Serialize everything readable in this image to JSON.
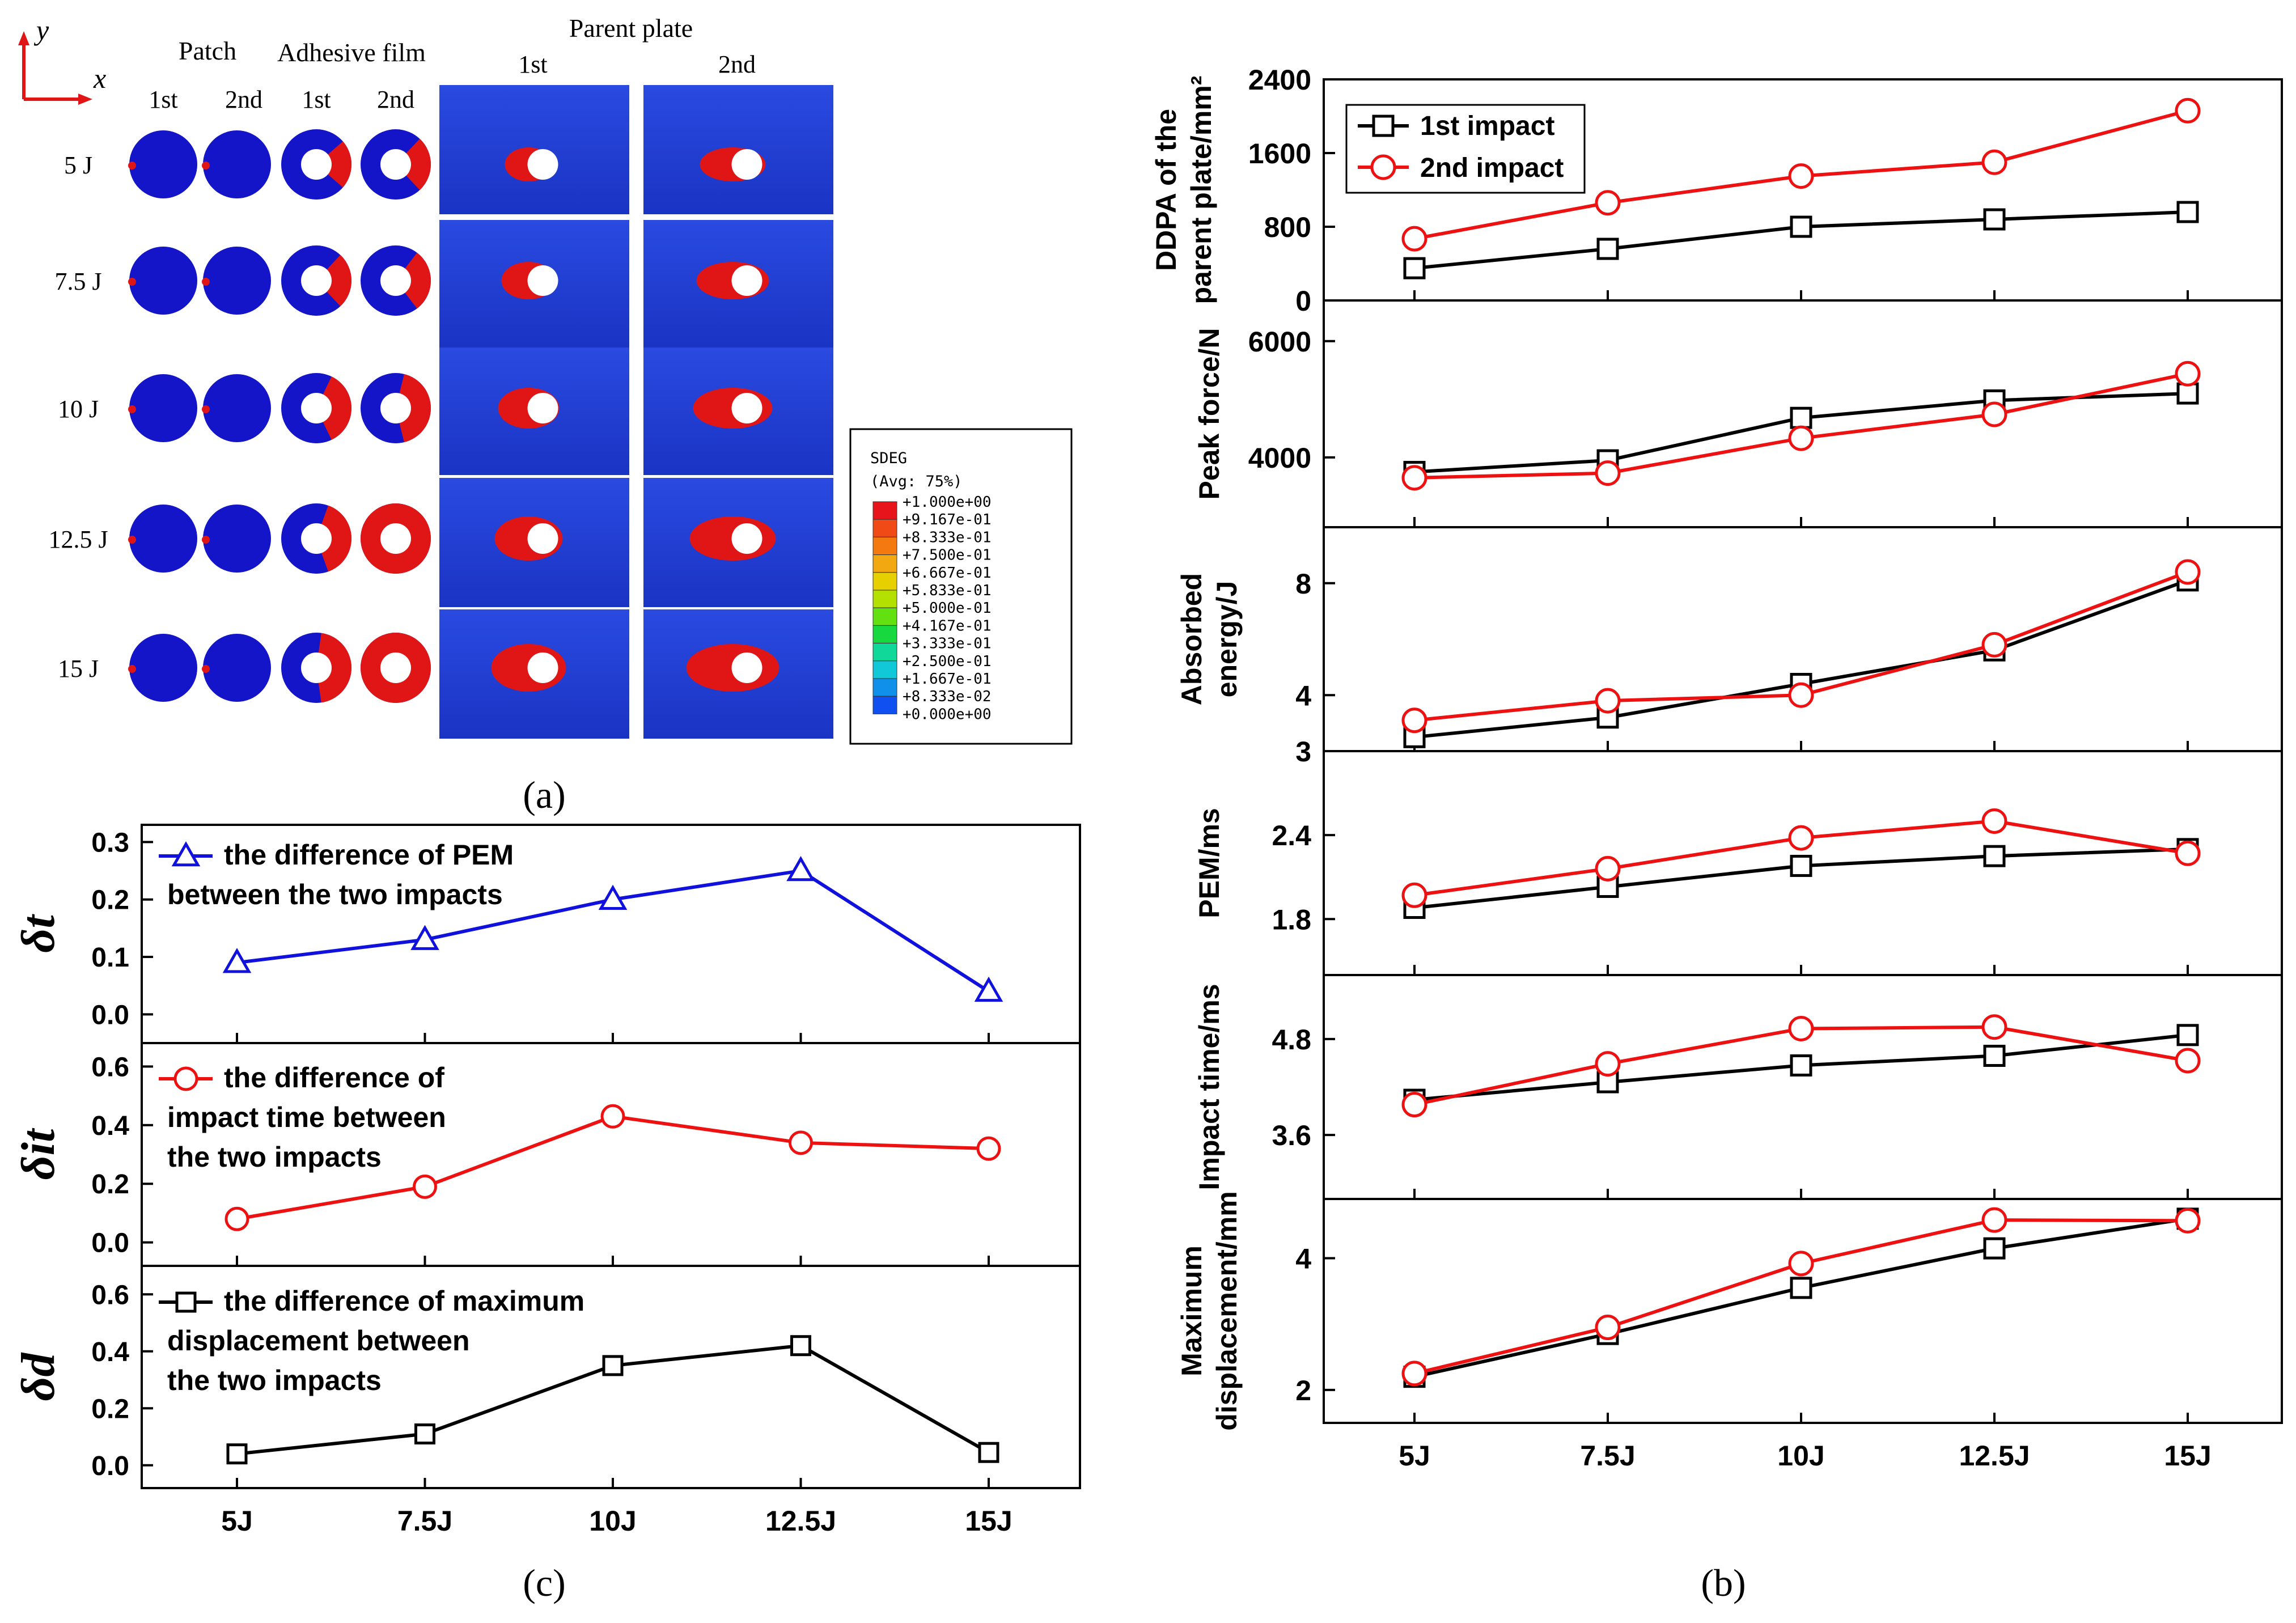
{
  "panel_a": {
    "caption": "(a)",
    "axis_labels": {
      "y": "y",
      "x": "x"
    },
    "headers": {
      "patch": "Patch",
      "adhesive": "Adhesive film",
      "parent": "Parent plate",
      "sub_1st": "1st",
      "sub_2nd": "2nd"
    },
    "energies": [
      "5 J",
      "7.5 J",
      "10 J",
      "12.5 J",
      "15 J"
    ],
    "damage_red_fraction_adhesive_1st": [
      0.35,
      0.4,
      0.55,
      0.6,
      0.7
    ],
    "damage_red_fraction_adhesive_2nd": [
      0.4,
      0.45,
      0.65,
      1.0,
      1.0
    ],
    "legend": {
      "title": "SDEG",
      "subtitle": "(Avg: 75%)",
      "levels": [
        "+1.000e+00",
        "+9.167e-01",
        "+8.333e-01",
        "+7.500e-01",
        "+6.667e-01",
        "+5.833e-01",
        "+5.000e-01",
        "+4.167e-01",
        "+3.333e-01",
        "+2.500e-01",
        "+1.667e-01",
        "+8.333e-02",
        "+0.000e+00"
      ],
      "colors": [
        "#e8141c",
        "#f04a16",
        "#f47a10",
        "#f2a810",
        "#e6d000",
        "#b4e000",
        "#62e010",
        "#18d840",
        "#10d898",
        "#10c8d8",
        "#1090e8",
        "#1050f0",
        "#1018e0"
      ]
    },
    "colors": {
      "blue": "#1414c8",
      "red": "#e01616",
      "plate_blue": "#1e3ad2"
    }
  },
  "panel_b": {
    "caption": "(b)",
    "categories": [
      "5J",
      "7.5J",
      "10J",
      "12.5J",
      "15J"
    ],
    "legend": [
      "1st impact",
      "2nd impact"
    ],
    "colors": {
      "first": "#000000",
      "second": "#ee1111"
    }
  },
  "panel_c": {
    "caption": "(c)",
    "categories": [
      "5J",
      "7.5J",
      "10J",
      "12.5J",
      "15J"
    ],
    "colors": {
      "t": "#1111dd",
      "it": "#ee1111",
      "d": "#000000"
    }
  },
  "chart_data": [
    {
      "panel": "b",
      "type": "line",
      "title": "",
      "categories": [
        "5J",
        "7.5J",
        "10J",
        "12.5J",
        "15J"
      ],
      "subplots": [
        {
          "ylabel": [
            "DDPA of the",
            "parent plate/mm²"
          ],
          "ylim": [
            0,
            2400
          ],
          "yticks": [
            0,
            800,
            1600,
            2400
          ],
          "series": [
            {
              "name": "1st impact",
              "marker": "square",
              "values": [
                350,
                560,
                800,
                880,
                960
              ]
            },
            {
              "name": "2nd impact",
              "marker": "circle",
              "values": [
                670,
                1060,
                1350,
                1500,
                2060
              ]
            }
          ]
        },
        {
          "ylabel": [
            "Peak force/N"
          ],
          "ylim": [
            2800,
            6700
          ],
          "yticks": [
            4000,
            6000
          ],
          "series": [
            {
              "name": "1st impact",
              "marker": "square",
              "values": [
                3750,
                3950,
                4680,
                4980,
                5100
              ]
            },
            {
              "name": "2nd impact",
              "marker": "circle",
              "values": [
                3650,
                3730,
                4330,
                4740,
                5440
              ]
            }
          ]
        },
        {
          "ylabel": [
            "Absorbed",
            "energy/J"
          ],
          "ylim": [
            2,
            10
          ],
          "yticks": [
            4,
            8
          ],
          "series": [
            {
              "name": "1st impact",
              "marker": "square",
              "values": [
                2.5,
                3.2,
                4.4,
                5.6,
                8.1
              ]
            },
            {
              "name": "2nd impact",
              "marker": "circle",
              "values": [
                3.1,
                3.8,
                4.0,
                5.8,
                8.4
              ]
            }
          ]
        },
        {
          "ylabel": [
            "PEM/ms"
          ],
          "ylim": [
            1.4,
            3.0
          ],
          "yticks": [
            1.8,
            2.4,
            3.0
          ],
          "series": [
            {
              "name": "1st impact",
              "marker": "square",
              "values": [
                1.88,
                2.03,
                2.18,
                2.25,
                2.3
              ]
            },
            {
              "name": "2nd impact",
              "marker": "circle",
              "values": [
                1.97,
                2.16,
                2.38,
                2.5,
                2.27
              ]
            }
          ]
        },
        {
          "ylabel": [
            "Impact time/ms"
          ],
          "ylim": [
            2.8,
            5.6
          ],
          "yticks": [
            3.6,
            4.8
          ],
          "series": [
            {
              "name": "1st impact",
              "marker": "square",
              "values": [
                4.04,
                4.26,
                4.47,
                4.59,
                4.85
              ]
            },
            {
              "name": "2nd impact",
              "marker": "circle",
              "values": [
                3.98,
                4.49,
                4.93,
                4.95,
                4.53
              ]
            }
          ]
        },
        {
          "ylabel": [
            "Maximum",
            "displacement/mm"
          ],
          "ylim": [
            1.5,
            4.9
          ],
          "yticks": [
            2,
            4
          ],
          "series": [
            {
              "name": "1st impact",
              "marker": "square",
              "values": [
                2.2,
                2.85,
                3.55,
                4.15,
                4.6
              ]
            },
            {
              "name": "2nd impact",
              "marker": "circle",
              "values": [
                2.25,
                2.95,
                3.92,
                4.58,
                4.57
              ]
            }
          ]
        }
      ]
    },
    {
      "panel": "c",
      "type": "line",
      "title": "",
      "categories": [
        "5J",
        "7.5J",
        "10J",
        "12.5J",
        "15J"
      ],
      "subplots": [
        {
          "ylabel": "δt",
          "ylim": [
            -0.05,
            0.33
          ],
          "yticks": [
            0.0,
            0.1,
            0.2,
            0.3
          ],
          "tick_labels": [
            "0.0",
            "0.1",
            "0.2",
            "0.3"
          ],
          "legend": [
            "the difference of PEM",
            "between the two impacts"
          ],
          "series": [
            {
              "name": "the difference of PEM between the two impacts",
              "marker": "triangle",
              "values": [
                0.09,
                0.13,
                0.2,
                0.25,
                0.04
              ]
            }
          ]
        },
        {
          "ylabel": "δit",
          "ylim": [
            -0.08,
            0.68
          ],
          "yticks": [
            0.0,
            0.2,
            0.4,
            0.6
          ],
          "tick_labels": [
            "0.0",
            "0.2",
            "0.4",
            "0.6"
          ],
          "legend": [
            "the difference of",
            "impact time between",
            "the two impacts"
          ],
          "series": [
            {
              "name": "the difference of impact time between the two impacts",
              "marker": "circle",
              "values": [
                0.08,
                0.19,
                0.43,
                0.34,
                0.32
              ]
            }
          ]
        },
        {
          "ylabel": "δd",
          "ylim": [
            -0.08,
            0.7
          ],
          "yticks": [
            0.0,
            0.2,
            0.4,
            0.6
          ],
          "tick_labels": [
            "0.0",
            "0.2",
            "0.4",
            "0.6"
          ],
          "legend": [
            "the difference of maximum",
            "displacement between",
            "the two impacts"
          ],
          "series": [
            {
              "name": "the difference of maximum displacement between the two impacts",
              "marker": "square",
              "values": [
                0.04,
                0.11,
                0.35,
                0.42,
                0.045
              ]
            }
          ]
        }
      ]
    }
  ]
}
